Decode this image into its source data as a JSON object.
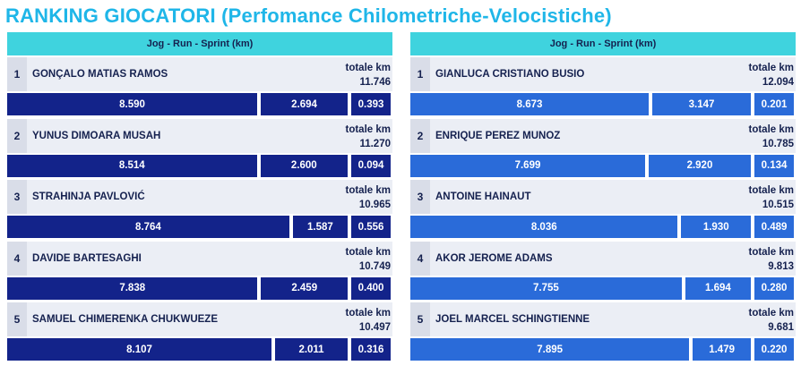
{
  "title": "RANKING GIOCATORI (Perfomance Chilometriche-Velocistiche)",
  "panels": {
    "left": {
      "header": "Jog - Run - Sprint (km)",
      "total_label": "totale km",
      "rows": [
        {
          "rank": "1",
          "name": "GONÇALO MATIAS RAMOS",
          "total": "11.746",
          "jog": "8.590",
          "run": "2.694",
          "sprint": "0.393"
        },
        {
          "rank": "2",
          "name": "YUNUS DIMOARA MUSAH",
          "total": "11.270",
          "jog": "8.514",
          "run": "2.600",
          "sprint": "0.094"
        },
        {
          "rank": "3",
          "name": "STRAHINJA PAVLOVIĆ",
          "total": "10.965",
          "jog": "8.764",
          "run": "1.587",
          "sprint": "0.556"
        },
        {
          "rank": "4",
          "name": "DAVIDE BARTESAGHI",
          "total": "10.749",
          "jog": "7.838",
          "run": "2.459",
          "sprint": "0.400"
        },
        {
          "rank": "5",
          "name": "SAMUEL CHIMERENKA CHUKWUEZE",
          "total": "10.497",
          "jog": "8.107",
          "run": "2.011",
          "sprint": "0.316"
        }
      ]
    },
    "right": {
      "header": "Jog - Run - Sprint (km)",
      "total_label": "totale km",
      "rows": [
        {
          "rank": "1",
          "name": "GIANLUCA CRISTIANO BUSIO",
          "total": "12.094",
          "jog": "8.673",
          "run": "3.147",
          "sprint": "0.201"
        },
        {
          "rank": "2",
          "name": "ENRIQUE PEREZ MUNOZ",
          "total": "10.785",
          "jog": "7.699",
          "run": "2.920",
          "sprint": "0.134"
        },
        {
          "rank": "3",
          "name": "ANTOINE HAINAUT",
          "total": "10.515",
          "jog": "8.036",
          "run": "1.930",
          "sprint": "0.489"
        },
        {
          "rank": "4",
          "name": "AKOR JEROME ADAMS",
          "total": "9.813",
          "jog": "7.755",
          "run": "1.694",
          "sprint": "0.280"
        },
        {
          "rank": "5",
          "name": "JOEL MARCEL SCHINGTIENNE",
          "total": "9.681",
          "jog": "7.895",
          "run": "1.479",
          "sprint": "0.220"
        }
      ]
    }
  }
}
